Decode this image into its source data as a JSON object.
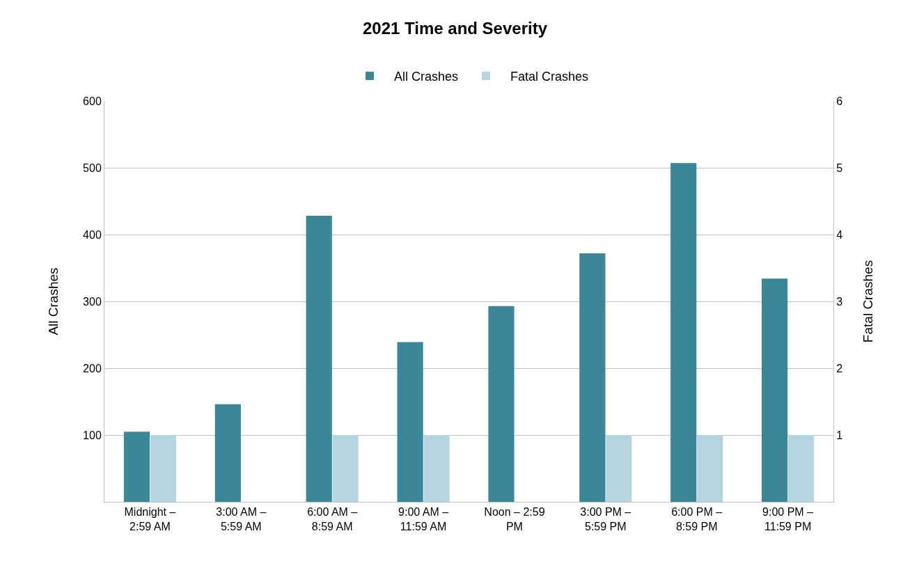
{
  "chart_data": {
    "type": "bar",
    "title": "2021 Time and Severity",
    "categories": [
      "Midnight – 2:59 AM",
      "3:00 AM – 5:59 AM",
      "6:00 AM – 8:59 AM",
      "9:00 AM – 11:59 AM",
      "Noon – 2:59 PM",
      "3:00 PM – 5:59 PM",
      "6:00 PM – 8:59 PM",
      "9:00 PM – 11:59 PM"
    ],
    "series": [
      {
        "name": "All Crashes",
        "color": "#3a8799",
        "values": [
          105,
          146,
          428,
          239,
          293,
          372,
          507,
          334
        ]
      },
      {
        "name": "Fatal Crashes",
        "color": "#b5d6e0",
        "axis": "y2",
        "values": [
          1,
          0,
          1,
          1,
          0,
          1,
          1,
          1
        ]
      }
    ],
    "ylabel": "All Crashes",
    "y2label": "Fatal Crashes",
    "ylim": [
      0,
      600
    ],
    "yticks": [
      100,
      200,
      300,
      400,
      500,
      600
    ],
    "y2lim": [
      0,
      6
    ],
    "y2ticks": [
      1,
      2,
      3,
      4,
      5,
      6
    ],
    "grid": "y",
    "legend": "top"
  }
}
